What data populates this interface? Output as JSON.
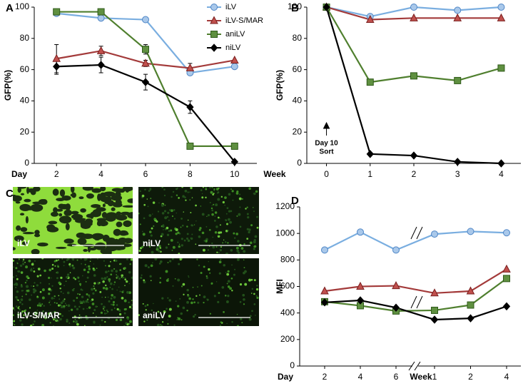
{
  "chart_data": [
    {
      "type": "line",
      "panel": "A",
      "ylabel": "GFP(%)",
      "xlabel": "Day",
      "x": [
        2,
        4,
        6,
        8,
        10
      ],
      "xlim": [
        1,
        11
      ],
      "xticks": [
        2,
        4,
        6,
        8,
        10
      ],
      "ylim": [
        0,
        100
      ],
      "yticks": [
        0,
        20,
        40,
        60,
        80,
        100
      ],
      "legend": "upper right",
      "series": [
        {
          "name": "iLV",
          "color": "#7aaee0",
          "marker": "circle",
          "values": [
            96,
            93,
            92,
            58,
            62
          ]
        },
        {
          "name": "iLV-S/MAR",
          "color": "#a33a3a",
          "marker": "triangle",
          "values": [
            67,
            72,
            64,
            61,
            66
          ],
          "errors": [
            9,
            3,
            2,
            3,
            null
          ]
        },
        {
          "name": "aniLV",
          "color": "#4f7f2e",
          "marker": "square",
          "values": [
            97,
            97,
            73,
            11,
            11
          ],
          "errors": [
            null,
            null,
            3,
            null,
            null
          ]
        },
        {
          "name": "niLV",
          "color": "#000000",
          "marker": "diamond",
          "values": [
            62,
            63,
            52,
            36,
            1
          ],
          "errors": [
            5,
            5,
            5,
            4,
            null
          ]
        }
      ]
    },
    {
      "type": "line",
      "panel": "B",
      "ylabel": "GFP(%)",
      "xlabel": "Week",
      "x": [
        0,
        1,
        2,
        3,
        4
      ],
      "xlim": [
        -0.45,
        4.45
      ],
      "xticks": [
        0,
        1,
        2,
        3,
        4
      ],
      "ylim": [
        0,
        100
      ],
      "yticks": [
        0,
        20,
        40,
        60,
        80,
        100
      ],
      "annotation": {
        "lines": [
          "Day 10",
          "Sort"
        ],
        "x": 0
      },
      "series": [
        {
          "color": "#7aaee0",
          "marker": "circle",
          "values": [
            100,
            94,
            100,
            98,
            100
          ]
        },
        {
          "color": "#a33a3a",
          "marker": "triangle",
          "values": [
            100,
            92,
            93,
            93,
            93
          ]
        },
        {
          "color": "#4f7f2e",
          "marker": "square",
          "values": [
            100,
            52,
            56,
            53,
            61
          ]
        },
        {
          "color": "#000000",
          "marker": "diamond",
          "values": [
            100,
            6,
            5,
            1,
            0
          ]
        }
      ]
    },
    {
      "type": "line",
      "panel": "D",
      "ylabel": "MFI",
      "category_groups": [
        {
          "name": "Day",
          "categories": [
            "2",
            "4",
            "6"
          ]
        },
        {
          "name": "Week",
          "categories": [
            "1",
            "2",
            "4"
          ]
        }
      ],
      "ylim": [
        0,
        1200
      ],
      "yticks": [
        0,
        200,
        400,
        600,
        800,
        1000,
        1200
      ],
      "series": [
        {
          "color": "#7aaee0",
          "marker": "circle",
          "values": [
            875,
            1010,
            875,
            995,
            1015,
            1005
          ]
        },
        {
          "color": "#a33a3a",
          "marker": "triangle",
          "values": [
            565,
            600,
            605,
            550,
            565,
            730
          ]
        },
        {
          "color": "#4f7f2e",
          "marker": "square",
          "values": [
            485,
            455,
            415,
            420,
            460,
            660
          ]
        },
        {
          "color": "#000000",
          "marker": "diamond",
          "values": [
            480,
            495,
            440,
            350,
            360,
            450
          ]
        }
      ]
    }
  ],
  "micrographs": {
    "panel": "C",
    "images": [
      "iLV",
      "niLV",
      "iLV-S/MAR",
      "aniLV"
    ]
  }
}
